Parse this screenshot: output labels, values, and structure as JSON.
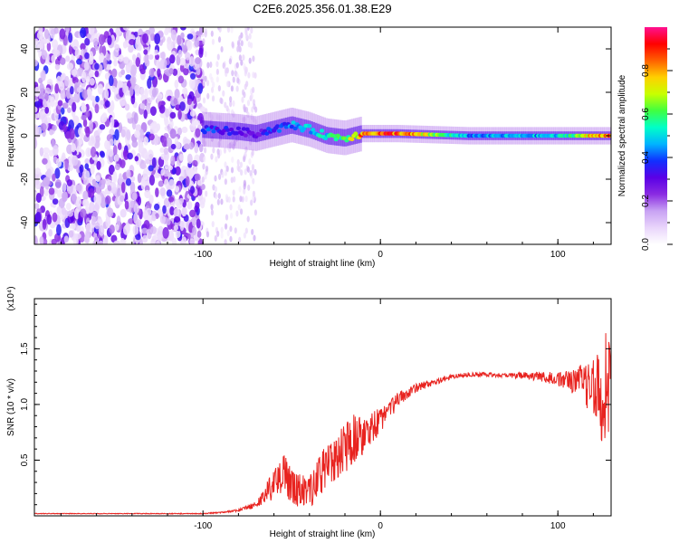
{
  "figure": {
    "title": "C2E6.2025.356.01.38.E29"
  },
  "colors": {
    "snr_line": "#e8231f",
    "colormap": [
      "#ffffff",
      "#e9d5fb",
      "#c8a2f3",
      "#8a2be2",
      "#5a00e6",
      "#1030ff",
      "#00b4ff",
      "#00ffc8",
      "#40ff40",
      "#c8ff00",
      "#ffd000",
      "#ff6000",
      "#ff0000",
      "#ff1090"
    ]
  },
  "chart_data": [
    {
      "type": "heatmap",
      "title": "",
      "xlabel": "Height of straight line (km)",
      "ylabel": "Frequency (Hz)",
      "xlim": [
        -195,
        130
      ],
      "ylim": [
        -50,
        50
      ],
      "xticks": [
        -100,
        0,
        100
      ],
      "yticks": [
        -40,
        -20,
        0,
        20,
        40
      ],
      "grid": false,
      "colorbar": {
        "label": "Normalized spectral amplitude",
        "range": [
          0,
          1
        ],
        "ticks": [
          0.0,
          0.2,
          0.4,
          0.6,
          0.8
        ]
      },
      "ridge": {
        "description_x": [
          -100,
          -80,
          -70,
          -60,
          -50,
          -40,
          -30,
          -20,
          -10,
          0,
          10,
          50,
          100,
          130
        ],
        "frequency_hz": [
          3,
          2,
          1,
          3,
          5,
          3,
          0,
          -1,
          1,
          1,
          1,
          0,
          0,
          0
        ],
        "amplitude": [
          0.4,
          0.35,
          0.3,
          0.4,
          0.45,
          0.5,
          0.55,
          0.6,
          0.85,
          0.9,
          0.9,
          0.45,
          0.5,
          0.95
        ]
      }
    },
    {
      "type": "line",
      "title": "",
      "xlabel": "Height of straight line (km)",
      "ylabel": "SNR (10 * v/v)",
      "yscale_label": "(x10⁴)",
      "xlim": [
        -195,
        130
      ],
      "ylim": [
        0,
        1.95
      ],
      "xticks": [
        -100,
        0,
        100
      ],
      "yticks": [
        0.5,
        1.0,
        1.5
      ],
      "grid": false,
      "series": [
        {
          "x": [
            -195,
            -150,
            -100,
            -90,
            -80,
            -70,
            -65,
            -60,
            -55,
            -50,
            -45,
            -40,
            -35,
            -30,
            -25,
            -20,
            -15,
            -10,
            -5,
            0,
            5,
            10,
            20,
            30,
            40,
            50,
            60,
            70,
            80,
            90,
            100,
            110,
            115,
            120,
            125,
            128,
            130
          ],
          "y": [
            0.02,
            0.02,
            0.02,
            0.03,
            0.05,
            0.1,
            0.18,
            0.3,
            0.38,
            0.28,
            0.22,
            0.2,
            0.35,
            0.45,
            0.55,
            0.6,
            0.7,
            0.75,
            0.8,
            0.85,
            0.95,
            1.05,
            1.15,
            1.2,
            1.25,
            1.27,
            1.27,
            1.26,
            1.26,
            1.25,
            1.23,
            1.2,
            1.2,
            1.15,
            1.1,
            1.2,
            1.2
          ],
          "noise": [
            0.003,
            0.003,
            0.004,
            0.006,
            0.01,
            0.03,
            0.08,
            0.15,
            0.18,
            0.18,
            0.16,
            0.15,
            0.18,
            0.2,
            0.22,
            0.22,
            0.22,
            0.2,
            0.15,
            0.12,
            0.1,
            0.06,
            0.04,
            0.03,
            0.02,
            0.02,
            0.02,
            0.02,
            0.03,
            0.04,
            0.06,
            0.12,
            0.2,
            0.3,
            0.45,
            0.5,
            0.5
          ]
        }
      ]
    }
  ]
}
